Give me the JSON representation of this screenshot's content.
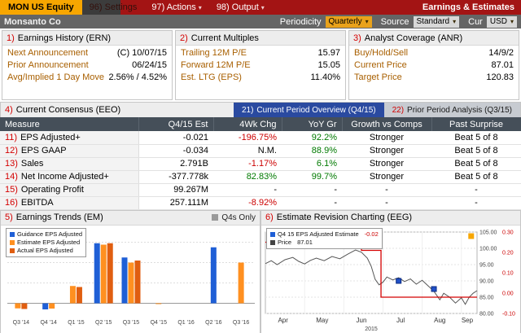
{
  "topbar": {
    "ticker": "MON US Equity",
    "settings": "96) Settings",
    "actions": "97) Actions",
    "output": "98) Output",
    "title": "Earnings & Estimates"
  },
  "securitybar": {
    "name": "Monsanto Co",
    "periodicity_label": "Periodicity",
    "periodicity_value": "Quarterly",
    "source_label": "Source",
    "source_value": "Standard",
    "cur_label": "Cur",
    "cur_value": "USD"
  },
  "info_panels": [
    {
      "num": "1)",
      "title": "Earnings History (ERN)",
      "rows": [
        {
          "label": "Next Announcement",
          "value": "(C) 10/07/15"
        },
        {
          "label": "Prior Announcement",
          "value": "06/24/15"
        },
        {
          "label": "Avg/Implied 1 Day Move",
          "value": "2.56% / 4.52%"
        }
      ]
    },
    {
      "num": "2)",
      "title": "Current Multiples",
      "rows": [
        {
          "label": "Trailing 12M P/E",
          "value": "15.97"
        },
        {
          "label": "Forward 12M P/E",
          "value": "15.05"
        },
        {
          "label": "Est. LTG (EPS)",
          "value": "11.40%"
        }
      ]
    },
    {
      "num": "3)",
      "title": "Analyst Coverage (ANR)",
      "rows": [
        {
          "label": "Buy/Hold/Sell",
          "value": "14/9/2"
        },
        {
          "label": "Current Price",
          "value": "87.01"
        },
        {
          "label": "Target Price",
          "value": "120.83"
        }
      ]
    }
  ],
  "consensus": {
    "num": "4)",
    "title": "Current Consensus (EEO)",
    "tabs": [
      {
        "num": "21)",
        "label": "Current Period Overview (Q4/15)",
        "active": true
      },
      {
        "num": "22)",
        "label": "Prior Period Analysis (Q3/15)",
        "active": false
      }
    ],
    "columns": [
      "Measure",
      "Q4/15 Est",
      "4Wk Chg",
      "YoY Gr",
      "Growth vs Comps",
      "Past Surprise"
    ],
    "rows": [
      {
        "num": "11)",
        "measure": "EPS Adjusted+",
        "est": "-0.021",
        "chg": "-196.75%",
        "chg_tone": "neg",
        "yoy": "92.2%",
        "yoy_tone": "pos",
        "comps": "Stronger",
        "surprise": "Beat 5 of 8"
      },
      {
        "num": "12)",
        "measure": "EPS GAAP",
        "est": "-0.034",
        "chg": "N.M.",
        "chg_tone": "",
        "yoy": "88.9%",
        "yoy_tone": "pos",
        "comps": "Stronger",
        "surprise": "Beat 5 of 8"
      },
      {
        "num": "13)",
        "measure": "Sales",
        "est": "2.791B",
        "chg": "-1.17%",
        "chg_tone": "neg",
        "yoy": "6.1%",
        "yoy_tone": "pos",
        "comps": "Stronger",
        "surprise": "Beat 5 of 8"
      },
      {
        "num": "14)",
        "measure": "Net Income Adjusted+",
        "est": "-377.778k",
        "chg": "82.83%",
        "chg_tone": "pos",
        "yoy": "99.7%",
        "yoy_tone": "pos",
        "comps": "Stronger",
        "surprise": "Beat 5 of 8"
      },
      {
        "num": "15)",
        "measure": "Operating Profit",
        "est": "99.267M",
        "chg": "-",
        "chg_tone": "",
        "yoy": "-",
        "yoy_tone": "",
        "comps": "-",
        "surprise": "-"
      },
      {
        "num": "16)",
        "measure": "EBITDA",
        "est": "257.111M",
        "chg": "-8.92%",
        "chg_tone": "neg",
        "yoy": "-",
        "yoy_tone": "",
        "comps": "-",
        "surprise": "-"
      }
    ]
  },
  "colors": {
    "accent_amber": "#f7a600",
    "banner_red": "#a31414",
    "negative": "#cc0000",
    "positive": "#007a00",
    "tab_active_blue": "#2a4aa0",
    "table_header_slate": "#454f59"
  },
  "chart_data": [
    {
      "id": "earnings_trends",
      "type": "bar",
      "num": "5)",
      "title": "Earnings Trends (EM)",
      "toggle": {
        "label": "Q4s Only",
        "swatch": "#9a9a9a"
      },
      "categories": [
        "Q3 '14",
        "Q4 '14",
        "Q1 '15",
        "Q2 '15",
        "Q3 '15",
        "Q4 '15",
        "Q1 '16",
        "Q2 '16",
        "Q3 '16"
      ],
      "series": [
        {
          "name": "Guidance EPS Adjusted",
          "color": "#1f5fd6",
          "values": [
            null,
            -0.3,
            null,
            2.95,
            2.25,
            null,
            null,
            2.75,
            null
          ]
        },
        {
          "name": "Estimate EPS Adjusted",
          "color": "#ff9020",
          "values": [
            -0.25,
            -0.26,
            0.85,
            2.88,
            2.0,
            -0.02,
            null,
            null,
            2.0
          ]
        },
        {
          "name": "Actual EPS Adjusted",
          "color": "#e05e10",
          "values": [
            -0.28,
            null,
            0.8,
            2.95,
            2.1,
            null,
            null,
            null,
            null
          ]
        }
      ],
      "ylim": [
        -0.5,
        3.5
      ],
      "gridlines": [
        0,
        1,
        2,
        3
      ],
      "legend_position": "top-left"
    },
    {
      "id": "estimate_revision",
      "type": "line",
      "num": "6)",
      "title": "Estimate Revision Charting (EEG)",
      "legend": [
        {
          "label": "Q4 15 EPS Adjusted Estimate",
          "value": "-0.02",
          "tone": "neg",
          "color": "#1f5fd6"
        },
        {
          "label": "Price",
          "value": "87.01",
          "tone": "",
          "color": "#444444"
        }
      ],
      "x_months": [
        "Apr",
        "May",
        "Jun",
        "Jul",
        "Aug",
        "Sep"
      ],
      "month_x": [
        0.45,
        1.45,
        2.45,
        3.45,
        4.45,
        5.15
      ],
      "year": "2015",
      "xlim": [
        0,
        5.4
      ],
      "price_axis": {
        "range": [
          80,
          105
        ],
        "ticks": [
          105,
          100,
          95,
          90,
          85,
          80
        ],
        "color": "#222222"
      },
      "estimate_axis": {
        "range": [
          -0.1,
          0.3
        ],
        "ticks": [
          "0.30",
          "0.20",
          "0.10",
          "0.00",
          "-0.10"
        ],
        "color": "#cc0000"
      },
      "price_series": {
        "name": "Price",
        "color": "#555555",
        "points": [
          [
            0,
            95.3
          ],
          [
            0.15,
            96.2
          ],
          [
            0.3,
            95.0
          ],
          [
            0.5,
            96.5
          ],
          [
            0.7,
            97.2
          ],
          [
            0.85,
            96.0
          ],
          [
            1.0,
            95.2
          ],
          [
            1.15,
            96.3
          ],
          [
            1.3,
            97.0
          ],
          [
            1.5,
            96.2
          ],
          [
            1.7,
            97.5
          ],
          [
            1.9,
            96.8
          ],
          [
            2.1,
            98.2
          ],
          [
            2.3,
            99.5
          ],
          [
            2.45,
            98.8
          ],
          [
            2.6,
            97.0
          ],
          [
            2.7,
            94.5
          ],
          [
            2.8,
            90.5
          ],
          [
            2.9,
            88.8
          ],
          [
            3.0,
            89.6
          ],
          [
            3.1,
            91.2
          ],
          [
            3.25,
            90.3
          ],
          [
            3.4,
            91.0
          ],
          [
            3.55,
            89.8
          ],
          [
            3.7,
            90.6
          ],
          [
            3.85,
            89.0
          ],
          [
            4.0,
            90.2
          ],
          [
            4.15,
            88.5
          ],
          [
            4.3,
            86.8
          ],
          [
            4.45,
            84.2
          ],
          [
            4.55,
            86.2
          ],
          [
            4.7,
            85.0
          ],
          [
            4.85,
            83.2
          ],
          [
            5.0,
            84.8
          ],
          [
            5.1,
            82.8
          ],
          [
            5.2,
            85.0
          ],
          [
            5.3,
            86.2
          ],
          [
            5.4,
            87.0
          ]
        ]
      },
      "estimate_series": {
        "name": "Q4 15 EPS Adjusted Estimate",
        "color": "#d40000",
        "points": [
          [
            0,
            0.25
          ],
          [
            2.45,
            0.25
          ],
          [
            2.45,
            0.21
          ],
          [
            2.95,
            0.21
          ],
          [
            2.95,
            -0.02
          ],
          [
            5.4,
            -0.02
          ]
        ]
      },
      "revision_markers": {
        "color": "#2050c8",
        "points": [
          [
            0.8,
            0.27
          ],
          [
            1.3,
            0.26
          ],
          [
            2.4,
            0.24
          ],
          [
            3.4,
            0.06
          ],
          [
            4.3,
            0.02
          ]
        ]
      },
      "annotation_marker": {
        "x": 5.25,
        "est": 0.28,
        "color": "#f7a600"
      }
    }
  ]
}
